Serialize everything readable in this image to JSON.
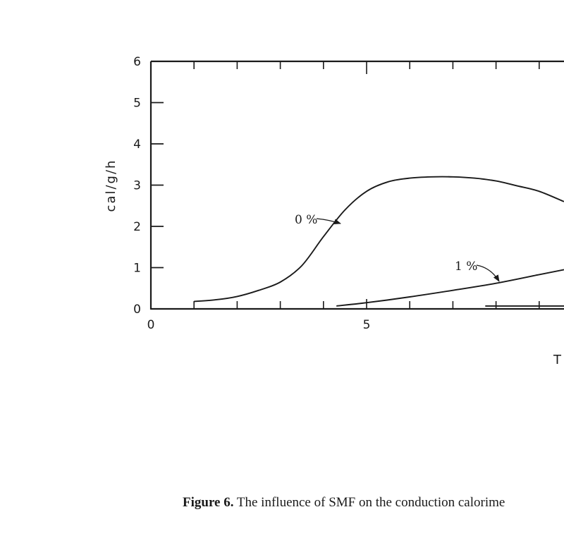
{
  "chart_data": {
    "type": "line",
    "title": "",
    "xlabel": "T",
    "ylabel": "cal/g/h",
    "xlim": [
      0,
      9.6
    ],
    "ylim": [
      0,
      6
    ],
    "x_ticks": [
      0,
      5
    ],
    "y_ticks": [
      0,
      1,
      2,
      3,
      4,
      5,
      6
    ],
    "grid": false,
    "series": [
      {
        "name": "0%",
        "x": [
          1.0,
          1.5,
          2.0,
          2.5,
          3.0,
          3.5,
          4.0,
          4.5,
          5.0,
          5.5,
          6.0,
          6.5,
          7.0,
          7.5,
          8.0,
          8.5,
          9.0,
          9.6
        ],
        "y": [
          0.18,
          0.22,
          0.3,
          0.45,
          0.65,
          1.05,
          1.75,
          2.4,
          2.85,
          3.08,
          3.17,
          3.2,
          3.2,
          3.17,
          3.1,
          2.98,
          2.85,
          2.6
        ]
      },
      {
        "name": "1%",
        "x": [
          4.3,
          5.0,
          6.0,
          7.0,
          8.0,
          9.0,
          9.6
        ],
        "y": [
          0.07,
          0.15,
          0.29,
          0.45,
          0.62,
          0.83,
          0.95
        ]
      },
      {
        "name": "",
        "x": [
          7.75,
          8.5,
          9.6
        ],
        "y": [
          0.07,
          0.07,
          0.07
        ]
      }
    ],
    "annotations": [
      {
        "text": "0 %",
        "series": "0%",
        "points_to": [
          4.1,
          2.1
        ]
      },
      {
        "text": "1 %",
        "series": "1%",
        "points_to": [
          8.05,
          0.65
        ]
      }
    ]
  },
  "caption": {
    "label": "Figure 6.",
    "text": " The influence of SMF on the conduction calorime"
  }
}
